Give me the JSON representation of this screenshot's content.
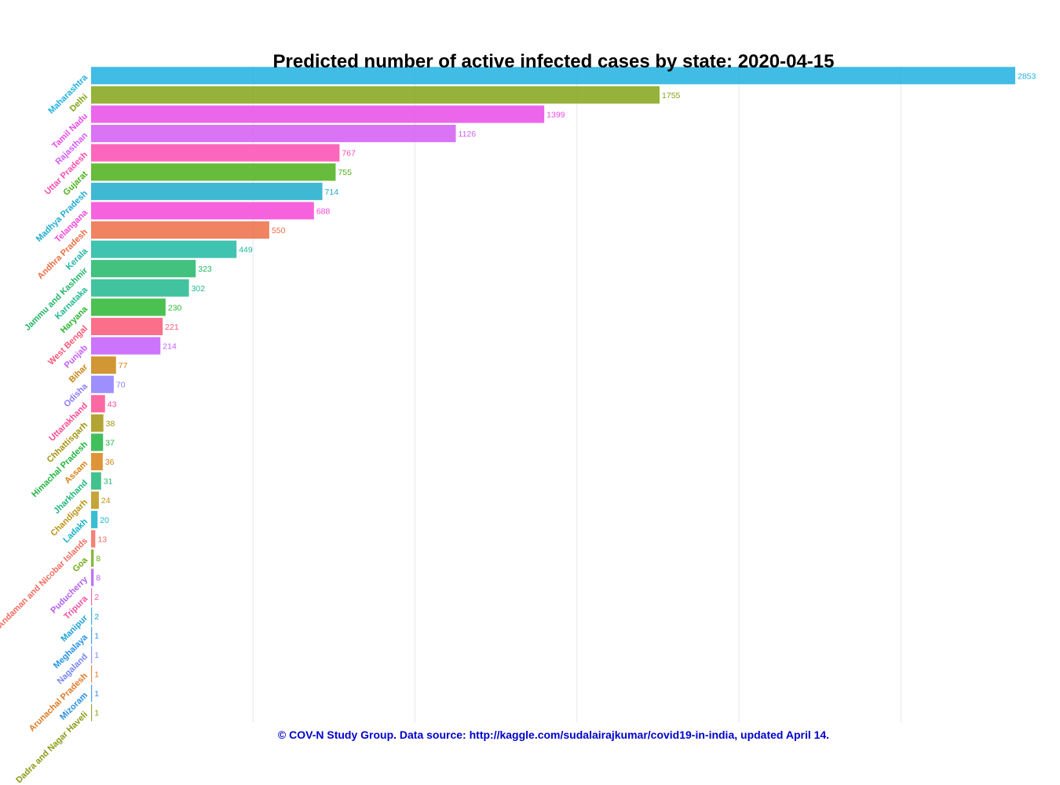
{
  "chart_data": {
    "type": "bar",
    "orientation": "horizontal",
    "title": "Predicted number of active infected cases by state: 2020-04-15",
    "caption": "© COV-N Study Group. Data source: http://kaggle.com/sudalairajkumar/covid19-in-india, updated April 14.",
    "xlabel": "",
    "ylabel": "",
    "xlim": [
      0,
      2900
    ],
    "grid": true,
    "gridlines_at": [
      500,
      1000,
      1500,
      2000,
      2500
    ],
    "bars": [
      {
        "category": "Maharashtra",
        "value": 2853,
        "color": "#1fb0e1"
      },
      {
        "category": "Delhi",
        "value": 1755,
        "color": "#82a518"
      },
      {
        "category": "Tamil Nadu",
        "value": 1399,
        "color": "#e94be8"
      },
      {
        "category": "Rajasthan",
        "value": 1126,
        "color": "#d35bf2"
      },
      {
        "category": "Uttar Pradesh",
        "value": 767,
        "color": "#fc4cb2"
      },
      {
        "category": "Gujarat",
        "value": 755,
        "color": "#4db01b"
      },
      {
        "category": "Madhya Pradesh",
        "value": 714,
        "color": "#1daccc"
      },
      {
        "category": "Telangana",
        "value": 688,
        "color": "#f546d7"
      },
      {
        "category": "Andhra Pradesh",
        "value": 550,
        "color": "#ec6d46"
      },
      {
        "category": "Kerala",
        "value": 449,
        "color": "#1fb8a3"
      },
      {
        "category": "Jammu and Kashmir",
        "value": 323,
        "color": "#21b668"
      },
      {
        "category": "Karnataka",
        "value": 302,
        "color": "#20b98e"
      },
      {
        "category": "Haryana",
        "value": 230,
        "color": "#2cb632"
      },
      {
        "category": "West Bengal",
        "value": 221,
        "color": "#fc5677"
      },
      {
        "category": "Punjab",
        "value": 214,
        "color": "#c45cfb"
      },
      {
        "category": "Bihar",
        "value": 77,
        "color": "#c98510"
      },
      {
        "category": "Odisha",
        "value": 70,
        "color": "#8d7cfb"
      },
      {
        "category": "Uttarakhand",
        "value": 43,
        "color": "#fc4d92"
      },
      {
        "category": "Chhattisgarh",
        "value": 38,
        "color": "#a49412"
      },
      {
        "category": "Himachal Pradesh",
        "value": 37,
        "color": "#21b441"
      },
      {
        "category": "Assam",
        "value": 36,
        "color": "#d98214"
      },
      {
        "category": "Jharkhand",
        "value": 31,
        "color": "#21b779"
      },
      {
        "category": "Chandigarh",
        "value": 24,
        "color": "#bb9416"
      },
      {
        "category": "Ladakh",
        "value": 20,
        "color": "#17b4c8"
      },
      {
        "category": "Andaman and Nicobar Islands",
        "value": 13,
        "color": "#f56a5e"
      },
      {
        "category": "Goa",
        "value": 8,
        "color": "#70ab16"
      },
      {
        "category": "Puducherry",
        "value": 8,
        "color": "#b35cf0"
      },
      {
        "category": "Tripura",
        "value": 2,
        "color": "#f250a0"
      },
      {
        "category": "Manipur",
        "value": 2,
        "color": "#1ca2d6"
      },
      {
        "category": "Meghalaya",
        "value": 1,
        "color": "#2592e8"
      },
      {
        "category": "Nagaland",
        "value": 1,
        "color": "#7886f2"
      },
      {
        "category": "Arunachal Pradesh",
        "value": 1,
        "color": "#de7a24"
      },
      {
        "category": "Mizoram",
        "value": 1,
        "color": "#2a8fe0"
      },
      {
        "category": "Dadra and Nagar Haveli",
        "value": 1,
        "color": "#8a9a14"
      }
    ]
  }
}
